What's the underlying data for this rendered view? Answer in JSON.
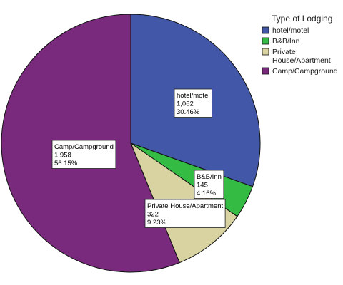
{
  "chart_data": {
    "type": "pie",
    "legend_title": "Type of Lodging",
    "legend_position": "top-right",
    "slices": [
      {
        "name": "hotel/motel",
        "value": 1062,
        "value_label": "1,062",
        "percent_label": "30.46%",
        "color": "#4257a8",
        "legend_lines": [
          "hotel/motel"
        ]
      },
      {
        "name": "B&B/Inn",
        "value": 145,
        "value_label": "145",
        "percent_label": "4.16%",
        "color": "#33bb44",
        "legend_lines": [
          "B&B/Inn"
        ]
      },
      {
        "name": "Private House/Apartment",
        "value": 322,
        "value_label": "322",
        "percent_label": "9.23%",
        "color": "#d8d3a1",
        "legend_lines": [
          "Private",
          "House/Apartment"
        ]
      },
      {
        "name": "Camp/Campground",
        "value": 1958,
        "value_label": "1,958",
        "percent_label": "56.15%",
        "color": "#7a2a7c",
        "legend_lines": [
          "Camp/Campground"
        ]
      }
    ]
  }
}
